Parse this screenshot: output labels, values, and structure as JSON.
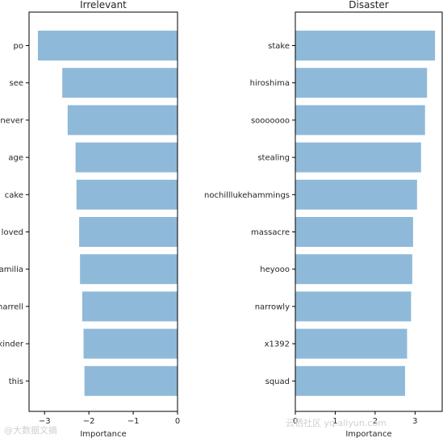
{
  "chart_data": [
    {
      "type": "bar",
      "orientation": "horizontal",
      "title": "Irrelevant",
      "xlabel": "Importance",
      "categories": [
        "po",
        "see",
        "never",
        "age",
        "cake",
        "loved",
        "familia",
        "harrell",
        "kinder",
        "this"
      ],
      "values": [
        -3.15,
        -2.6,
        -2.48,
        -2.3,
        -2.28,
        -2.22,
        -2.2,
        -2.15,
        -2.12,
        -2.1
      ],
      "xlim": [
        -3.35,
        0
      ],
      "xticks": [
        -3,
        -2,
        -1,
        0
      ],
      "xtick_labels": [
        "−3",
        "−2",
        "−1",
        "0"
      ],
      "color": "#8fb9d9"
    },
    {
      "type": "bar",
      "orientation": "horizontal",
      "title": "Disaster",
      "xlabel": "Importance",
      "categories": [
        "stake",
        "hiroshima",
        "sooooooo",
        "stealing",
        "nochilllukehammings",
        "massacre",
        "heyooo",
        "narrowly",
        "x1392",
        "squad"
      ],
      "values": [
        3.5,
        3.3,
        3.25,
        3.15,
        3.05,
        2.95,
        2.93,
        2.9,
        2.8,
        2.75
      ],
      "xlim": [
        0,
        3.68
      ],
      "xticks": [
        0,
        1,
        2,
        3
      ],
      "xtick_labels": [
        "0",
        "1",
        "2",
        "3"
      ],
      "color": "#8fb9d9"
    }
  ],
  "watermark_left": "@大数据文摘",
  "watermark_right": "云栖社区 yq.aliyun.com"
}
